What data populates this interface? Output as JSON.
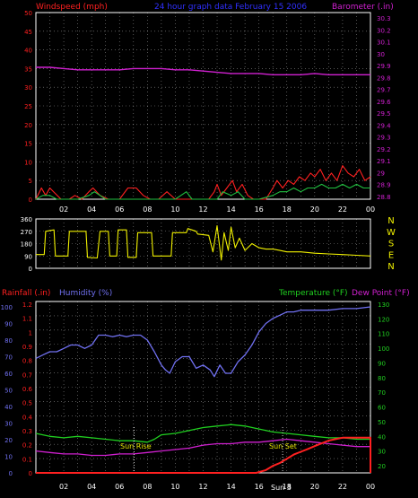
{
  "chart_data": [
    {
      "type": "line",
      "title": "24 hour graph data   February 15 2006",
      "y_left_label": "Windspeed (mph)",
      "y_right_label": "Barometer (.in)",
      "x_ticks": [
        "02",
        "04",
        "06",
        "08",
        "10",
        "12",
        "14",
        "16",
        "18",
        "20",
        "22",
        "00"
      ],
      "y_left_ticks": [
        "50",
        "45",
        "40",
        "35",
        "30",
        "25",
        "20",
        "15",
        "10",
        "5",
        "0"
      ],
      "y_right_ticks": [
        "30.3",
        "30.2",
        "30.1",
        "30",
        "29.9",
        "29.8",
        "29.7",
        "29.6",
        "29.5",
        "29.4",
        "29.3",
        "29.2",
        "29.1",
        "29",
        "28.9",
        "28.8"
      ],
      "y_left_range": [
        0,
        50
      ],
      "y_right_range": [
        28.8,
        30.3
      ],
      "series": [
        {
          "key": "barometer",
          "color": "#d020d0",
          "axis": "right",
          "x": [
            0,
            1,
            2,
            3,
            4,
            5,
            6,
            7,
            8,
            9,
            10,
            11,
            12,
            13,
            14,
            15,
            16,
            17,
            18,
            19,
            20,
            21,
            22,
            23,
            24
          ],
          "y": [
            29.86,
            29.86,
            29.85,
            29.84,
            29.84,
            29.84,
            29.84,
            29.85,
            29.85,
            29.85,
            29.84,
            29.84,
            29.83,
            29.82,
            29.81,
            29.81,
            29.81,
            29.8,
            29.8,
            29.8,
            29.81,
            29.8,
            29.8,
            29.8,
            29.8
          ]
        },
        {
          "key": "wind_gust",
          "color": "#ff2020",
          "axis": "left",
          "x": [
            0,
            0.4,
            0.7,
            1,
            1.8,
            2.4,
            2.8,
            3.3,
            3.8,
            4.1,
            4.6,
            5.2,
            6,
            6.6,
            7.2,
            7.7,
            8.2,
            8.8,
            9.4,
            10,
            10.6,
            10.9,
            11.6,
            12.4,
            12.8,
            13,
            13.3,
            13.7,
            14.1,
            14.4,
            14.8,
            15.2,
            15.6,
            16,
            16.5,
            17,
            17.3,
            17.7,
            18.1,
            18.5,
            18.9,
            19.3,
            19.7,
            20,
            20.4,
            20.8,
            21.2,
            21.6,
            22,
            22.4,
            22.8,
            23.2,
            23.6,
            24
          ],
          "y": [
            0,
            3,
            1,
            3,
            0,
            0,
            1,
            0,
            2,
            3,
            1,
            0,
            0,
            3,
            3,
            1,
            0,
            0,
            2,
            0,
            0,
            0,
            0,
            0,
            2,
            4,
            1,
            3,
            5,
            2,
            4,
            1,
            0,
            0,
            0,
            3,
            5,
            3,
            5,
            4,
            6,
            5,
            7,
            6,
            8,
            5,
            7,
            5,
            9,
            7,
            6,
            8,
            5,
            6
          ]
        },
        {
          "key": "wind_speed",
          "color": "#20c040",
          "axis": "left",
          "x": [
            0,
            0.5,
            1,
            1.5,
            2,
            3,
            3.8,
            4.2,
            5,
            6,
            7,
            8,
            9,
            10,
            10.8,
            11.2,
            12,
            13,
            13.4,
            14,
            14.5,
            15,
            16,
            17,
            17.5,
            18,
            18.5,
            19,
            19.5,
            20,
            20.5,
            21,
            21.5,
            22,
            22.5,
            23,
            23.5,
            24
          ],
          "y": [
            0,
            1,
            1,
            0,
            0,
            0,
            1,
            2,
            0,
            0,
            0,
            0,
            0,
            0,
            2,
            0,
            0,
            0,
            2,
            1,
            2,
            0,
            0,
            1,
            2,
            2,
            3,
            2,
            3,
            3,
            4,
            3,
            3,
            4,
            3,
            4,
            3,
            3
          ]
        }
      ]
    },
    {
      "type": "line",
      "y_left_ticks": [
        "360",
        "270",
        "180",
        "90",
        "0"
      ],
      "y_right_ticks": [
        "N",
        "W",
        "S",
        "E",
        "N"
      ],
      "y_range": [
        0,
        360
      ],
      "x_ticks": [
        "02",
        "04",
        "06",
        "08",
        "10",
        "12",
        "14",
        "16",
        "18",
        "20",
        "22",
        "00"
      ],
      "series": [
        {
          "key": "wind_direction",
          "color": "#f0f000",
          "x": [
            0,
            0.6,
            0.7,
            1.3,
            1.4,
            2.3,
            2.4,
            3.6,
            3.7,
            4.4,
            4.6,
            5.2,
            5.3,
            5.8,
            5.9,
            6.5,
            6.6,
            7.2,
            7.3,
            8.3,
            8.4,
            9.7,
            9.8,
            10.8,
            10.9,
            11.5,
            11.6,
            12.4,
            12.7,
            13,
            13.3,
            13.5,
            13.8,
            14,
            14.3,
            14.6,
            15,
            15.5,
            16,
            16.5,
            17,
            17.5,
            18,
            19,
            20,
            21,
            22,
            23,
            24
          ],
          "y": [
            100,
            100,
            270,
            280,
            90,
            90,
            270,
            270,
            80,
            75,
            270,
            270,
            90,
            90,
            280,
            280,
            80,
            80,
            260,
            260,
            90,
            90,
            260,
            260,
            290,
            270,
            250,
            240,
            120,
            310,
            60,
            260,
            130,
            300,
            150,
            220,
            130,
            180,
            150,
            140,
            140,
            130,
            120,
            120,
            110,
            105,
            100,
            95,
            90
          ]
        }
      ]
    },
    {
      "type": "line",
      "y_left_label_1": "Rainfall (.in)",
      "y_left_label_2": "Humidity (%)",
      "y_right_label_1": "Temperature (°F)",
      "y_right_label_2": "Dew Point (°F)",
      "x_ticks": [
        "02",
        "04",
        "06",
        "08",
        "10",
        "12",
        "14",
        "16",
        "18",
        "20",
        "22",
        "00"
      ],
      "humidity_ticks": [
        "100",
        "90",
        "80",
        "70",
        "60",
        "50",
        "40",
        "30",
        "20",
        "10",
        "0"
      ],
      "rainfall_ticks": [
        "1.2",
        "1.1",
        "1",
        "0.9",
        "0.8",
        "0.7",
        "0.6",
        "0.5",
        "0.4",
        "0.3",
        "0.2",
        "0.1",
        "0"
      ],
      "temperature_ticks": [
        "130",
        "120",
        "110",
        "100",
        "90",
        "80",
        "70",
        "60",
        "50",
        "40",
        "30",
        "20"
      ],
      "annotations": [
        "Sun Rise",
        "Sun Set",
        "Sun 3"
      ],
      "series": [
        {
          "key": "humidity",
          "color": "#7070f0",
          "axis": "humidity",
          "x": [
            0,
            0.5,
            1,
            1.5,
            2,
            2.5,
            3,
            3.5,
            4,
            4.5,
            5,
            5.5,
            6,
            6.5,
            7,
            7.5,
            8,
            8.5,
            9,
            9.3,
            9.6,
            10,
            10.5,
            11,
            11.5,
            12,
            12.5,
            12.8,
            13.2,
            13.6,
            14,
            14.5,
            15,
            15.5,
            16,
            16.5,
            17,
            17.5,
            18,
            18.5,
            19,
            20,
            21,
            22,
            23,
            24
          ],
          "y": [
            69,
            71,
            73,
            73,
            75,
            77,
            77,
            75,
            77,
            83,
            83,
            82,
            83,
            82,
            83,
            83,
            80,
            73,
            65,
            62,
            60,
            67,
            70,
            70,
            63,
            65,
            62,
            58,
            65,
            60,
            60,
            67,
            71,
            77,
            85,
            90,
            93,
            95,
            97,
            97,
            98,
            98,
            98,
            99,
            99,
            100
          ]
        },
        {
          "key": "temperature",
          "color": "#20d020",
          "axis": "temperature",
          "x": [
            0,
            1,
            2,
            3,
            4,
            5,
            6,
            7,
            8,
            8.5,
            9,
            10,
            11,
            12,
            13,
            14,
            15,
            16,
            17,
            18,
            19,
            20,
            21,
            22,
            23,
            24
          ],
          "y": [
            42,
            40,
            39,
            40,
            39,
            38,
            37,
            37,
            36,
            38,
            41,
            42,
            44,
            46,
            47,
            48,
            47,
            45,
            43,
            42,
            41,
            40,
            39,
            39,
            38,
            38
          ]
        },
        {
          "key": "dew_point",
          "color": "#d020d0",
          "axis": "temperature",
          "x": [
            0,
            1,
            2,
            3,
            4,
            5,
            6,
            7,
            8,
            9,
            10,
            11,
            12,
            13,
            14,
            15,
            16,
            17,
            18,
            19,
            20,
            21,
            22,
            23,
            24
          ],
          "y": [
            30,
            29,
            28,
            28,
            27,
            27,
            28,
            28,
            29,
            30,
            31,
            32,
            34,
            35,
            35,
            36,
            36,
            37,
            38,
            37,
            36,
            35,
            34,
            33,
            33
          ]
        },
        {
          "key": "rainfall",
          "color": "#ff2020",
          "axis": "rainfall",
          "x": [
            0,
            15.8,
            16.5,
            17,
            17.5,
            18,
            18.5,
            19,
            19.5,
            20,
            20.5,
            21,
            21.5,
            22,
            22.6,
            23.6,
            24,
            24
          ],
          "y": [
            0,
            0,
            0.02,
            0.05,
            0.07,
            0.1,
            0.13,
            0.15,
            0.17,
            0.19,
            0.21,
            0.23,
            0.24,
            0.25,
            0.25,
            0.25,
            0.25,
            0
          ]
        }
      ]
    }
  ]
}
